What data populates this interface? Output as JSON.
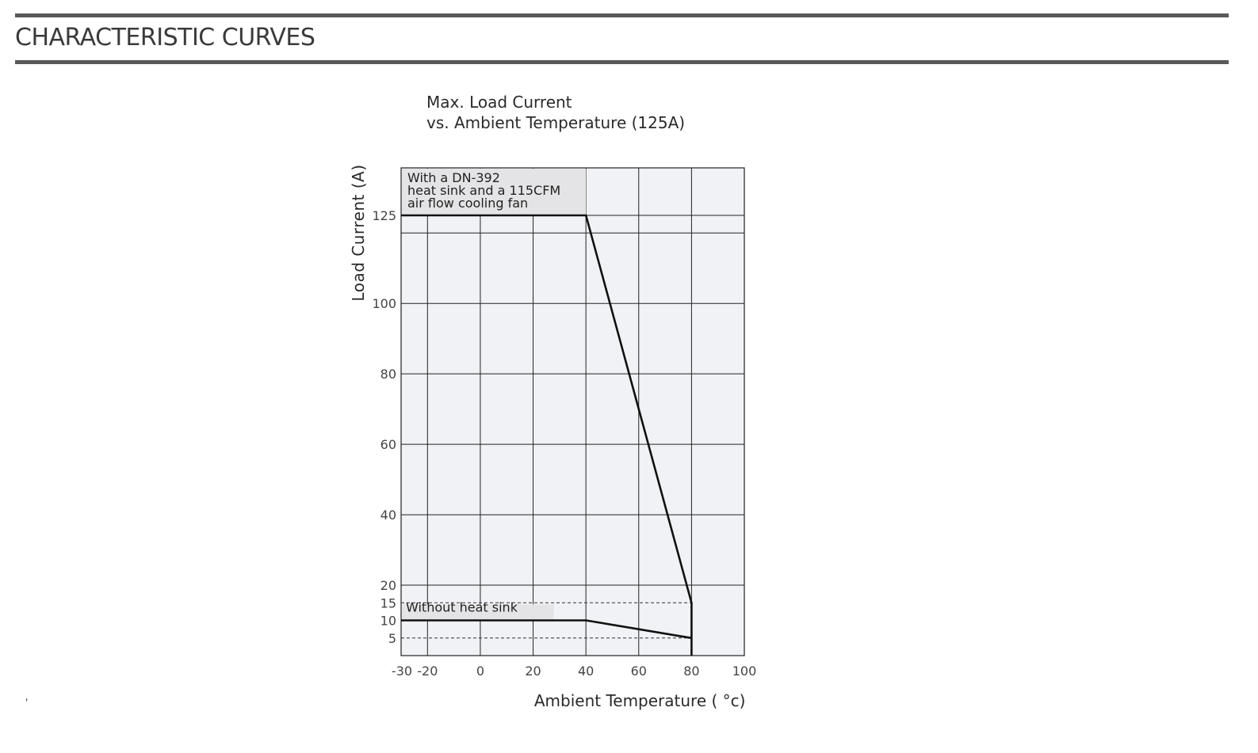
{
  "section": {
    "title": "CHARACTERISTIC CURVES"
  },
  "stray_mark": "'",
  "chart_data": {
    "type": "line",
    "title_lines": [
      "Max. Load Current",
      "vs. Ambient Temperature (125A)"
    ],
    "xlabel": "Ambient Temperature ( °c)",
    "ylabel": "Load Current (A)",
    "xlim": [
      -30,
      100
    ],
    "ylim": [
      0,
      140
    ],
    "x_ticks": [
      -30,
      -20,
      0,
      20,
      40,
      60,
      80,
      100
    ],
    "y_ticks": [
      5,
      10,
      15,
      20,
      40,
      60,
      80,
      100,
      125
    ],
    "x_gridlines": [
      -20,
      0,
      20,
      40,
      60,
      80
    ],
    "y_gridlines": [
      20,
      40,
      60,
      80,
      100,
      120,
      125
    ],
    "dashed_references": [
      {
        "y": 15,
        "x_range": [
          -30,
          80
        ]
      },
      {
        "y": 5,
        "x_range": [
          -30,
          80
        ]
      }
    ],
    "grid": true,
    "background_color": "#f1f2f6",
    "line_color": "#111111",
    "label_fill": "#e4e4e6",
    "series": [
      {
        "name": "With a DN-392 heat sink and a 115CFM air flow cooling fan",
        "label_lines": [
          "With a DN-392",
          "heat sink  and a 115CFM",
          "air flow cooling fan"
        ],
        "points": [
          [
            -30,
            125
          ],
          [
            40,
            125
          ],
          [
            80,
            15
          ],
          [
            80,
            0
          ]
        ]
      },
      {
        "name": "Without heat sink",
        "label_lines": [
          "Without heat sink"
        ],
        "points": [
          [
            -30,
            10
          ],
          [
            40,
            10
          ],
          [
            80,
            5
          ]
        ]
      }
    ]
  }
}
